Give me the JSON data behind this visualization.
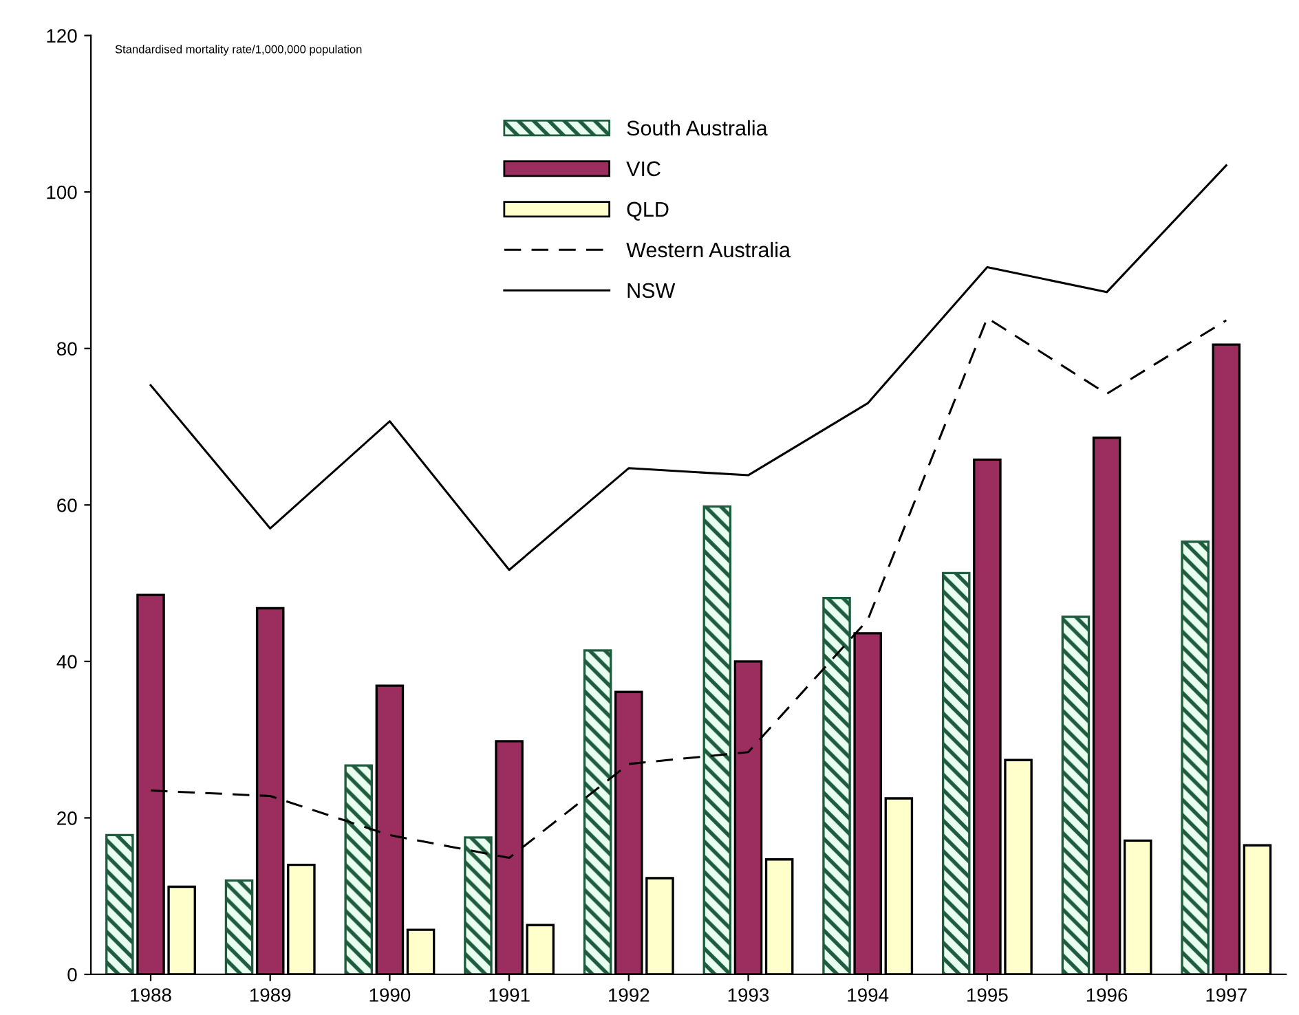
{
  "chart_data": {
    "type": "bar",
    "categories": [
      "1988",
      "1989",
      "1990",
      "1991",
      "1992",
      "1993",
      "1994",
      "1995",
      "1996",
      "1997"
    ],
    "series": [
      {
        "name": "South Australia",
        "color": "#1f5c3d",
        "values": [
          17.8,
          12.0,
          26.7,
          17.5,
          41.4,
          59.8,
          48.1,
          51.3,
          45.7,
          55.3
        ]
      },
      {
        "name": "VIC",
        "color": "#9b2d5f",
        "values": [
          48.5,
          46.8,
          36.9,
          29.8,
          36.1,
          40.0,
          43.6,
          65.8,
          68.6,
          80.5
        ]
      },
      {
        "name": "QLD",
        "color": "#ffffcc",
        "values": [
          11.2,
          14.0,
          5.7,
          6.3,
          12.3,
          14.7,
          22.5,
          27.4,
          17.1,
          16.5
        ]
      },
      {
        "name": "Western Australia",
        "type": "line",
        "color": "#000000",
        "line_style": "dashed",
        "values": [
          23.5,
          22.8,
          17.8,
          14.9,
          26.9,
          28.4,
          45.3,
          83.9,
          74.2,
          83.6
        ]
      },
      {
        "name": "NSW",
        "type": "line",
        "color": "#000000",
        "line_style": "solid",
        "values": [
          75.3,
          57.0,
          70.7,
          51.7,
          64.7,
          63.8,
          73.0,
          90.4,
          87.2,
          103.4
        ]
      }
    ],
    "ylim": [
      0,
      120
    ],
    "yticks": [
      0,
      20,
      40,
      60,
      80,
      100,
      120
    ],
    "annotations": [
      "Standardised mortality rate/1,000,000 population"
    ],
    "legend": "top",
    "grid": false,
    "marker": "none"
  }
}
